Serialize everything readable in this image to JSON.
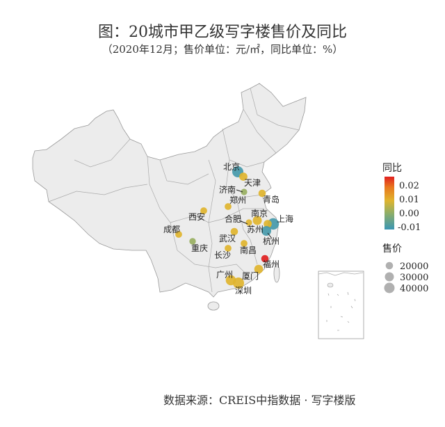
{
  "title": "图：20城市甲乙级写字楼售价及同比",
  "subtitle": "（2020年12月；售价单位：元/㎡，同比单位：%）",
  "source": "数据来源：CREIS中指数据 · 写字楼版",
  "chart_data": {
    "type": "scatter",
    "map": "China",
    "color_variable": "同比",
    "size_variable": "售价",
    "legend_color": {
      "title": "同比",
      "ticks": [
        "0.02",
        "0.01",
        "0.00",
        "-0.01"
      ],
      "colors": {
        "low": "#3a96b4",
        "mid": "#8cae6a",
        "high_mid": "#e0b42e",
        "high": "#e02020"
      }
    },
    "legend_size": {
      "title": "售价",
      "values": [
        20000,
        30000,
        40000
      ],
      "labels": [
        "20000",
        "30000",
        "40000"
      ],
      "color": "#b0b0b0"
    },
    "legend_placement": "right",
    "cities": [
      {
        "name": "北京",
        "price": 45000,
        "yoy": -0.01
      },
      {
        "name": "天津",
        "price": 25000,
        "yoy": 0.01
      },
      {
        "name": "济南",
        "price": 15000,
        "yoy": 0.004
      },
      {
        "name": "青岛",
        "price": 20000,
        "yoy": 0.01
      },
      {
        "name": "郑州",
        "price": 17000,
        "yoy": 0.01
      },
      {
        "name": "西安",
        "price": 17000,
        "yoy": 0.01
      },
      {
        "name": "南京",
        "price": 30000,
        "yoy": 0.01
      },
      {
        "name": "合肥",
        "price": 15000,
        "yoy": 0.01
      },
      {
        "name": "上海",
        "price": 48000,
        "yoy": -0.01
      },
      {
        "name": "苏州",
        "price": 24000,
        "yoy": 0.01
      },
      {
        "name": "杭州",
        "price": 35000,
        "yoy": -0.01
      },
      {
        "name": "成都",
        "price": 17000,
        "yoy": 0.01
      },
      {
        "name": "重庆",
        "price": 16000,
        "yoy": 0.004
      },
      {
        "name": "武汉",
        "price": 20000,
        "yoy": 0.01
      },
      {
        "name": "长沙",
        "price": 17000,
        "yoy": 0.01
      },
      {
        "name": "南昌",
        "price": 17000,
        "yoy": 0.01
      },
      {
        "name": "福州",
        "price": 20000,
        "yoy": 0.025
      },
      {
        "name": "厦门",
        "price": 28000,
        "yoy": 0.01
      },
      {
        "name": "广州",
        "price": 38000,
        "yoy": 0.01
      },
      {
        "name": "深圳",
        "price": 45000,
        "yoy": 0.01
      }
    ]
  }
}
